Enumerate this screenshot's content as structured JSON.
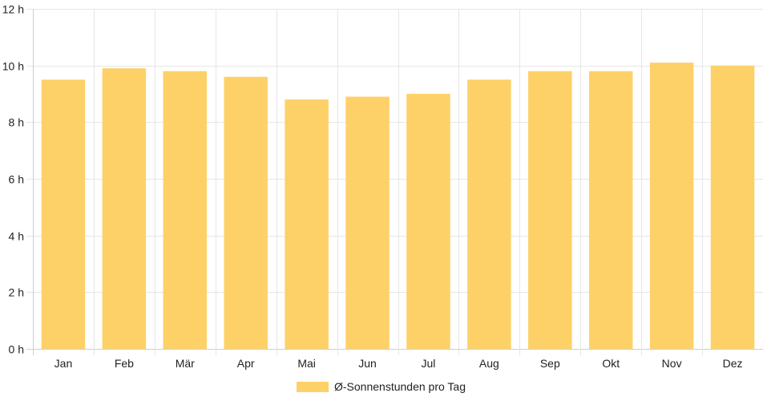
{
  "chart_data": {
    "type": "bar",
    "categories": [
      "Jan",
      "Feb",
      "Mär",
      "Apr",
      "Mai",
      "Jun",
      "Jul",
      "Aug",
      "Sep",
      "Okt",
      "Nov",
      "Dez"
    ],
    "series": [
      {
        "name": "Ø-Sonnenstunden pro Tag",
        "values": [
          9.5,
          9.9,
          9.8,
          9.6,
          8.8,
          8.9,
          9.0,
          9.5,
          9.8,
          9.8,
          10.1,
          10.0
        ],
        "color": "#fdd168"
      }
    ],
    "ylim": [
      0,
      12
    ],
    "yticks": [
      0,
      2,
      4,
      6,
      8,
      10,
      12
    ],
    "ytick_labels": [
      "0 h",
      "2 h",
      "4 h",
      "6 h",
      "8 h",
      "10 h",
      "12 h"
    ],
    "grid": true,
    "legend_position": "bottom-center",
    "title": "",
    "xlabel": "",
    "ylabel": ""
  }
}
